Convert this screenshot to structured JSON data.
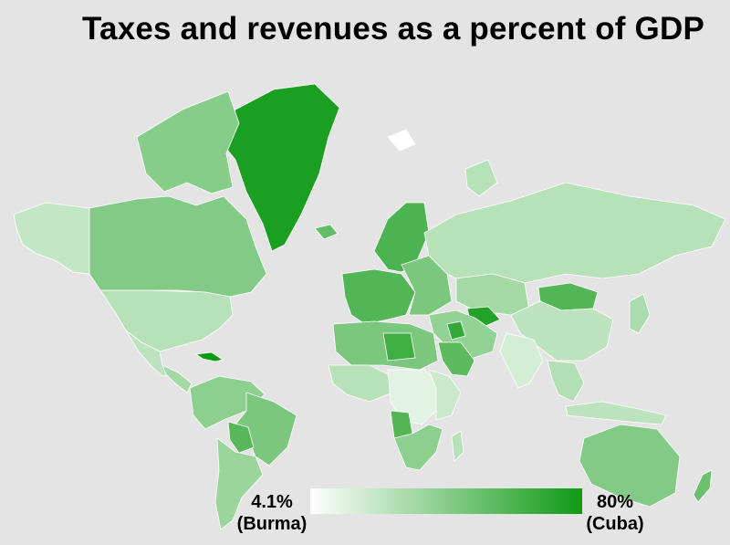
{
  "title": "Taxes and revenues as a percent of GDP",
  "legend": {
    "min_value": "4.1%",
    "min_country": "(Burma)",
    "max_value": "80%",
    "max_country": "(Cuba)",
    "color_low": "#ffffff",
    "color_high": "#0f9a14"
  },
  "colors": {
    "background": "#e4e4e4",
    "water_gap": "#ffffff"
  },
  "regions": [
    {
      "id": "greenland",
      "name": "Greenland",
      "level": 0.95
    },
    {
      "id": "alaska",
      "name": "Alaska",
      "level": 0.25
    },
    {
      "id": "canada",
      "name": "Canada",
      "level": 0.52
    },
    {
      "id": "canada-arctic",
      "name": "Canadian Arctic",
      "level": 0.5
    },
    {
      "id": "usa",
      "name": "United States",
      "level": 0.3
    },
    {
      "id": "mexico",
      "name": "Mexico",
      "level": 0.28
    },
    {
      "id": "central-america",
      "name": "Central America",
      "level": 0.38
    },
    {
      "id": "cuba",
      "name": "Cuba",
      "level": 1.0
    },
    {
      "id": "south-america-north",
      "name": "Northern South America",
      "level": 0.48
    },
    {
      "id": "brazil",
      "name": "Brazil",
      "level": 0.55
    },
    {
      "id": "bolivia",
      "name": "Bolivia",
      "level": 0.7
    },
    {
      "id": "south-america-south",
      "name": "Southern South America",
      "level": 0.42
    },
    {
      "id": "iceland",
      "name": "Iceland",
      "level": 0.65
    },
    {
      "id": "scandinavia",
      "name": "Scandinavia",
      "level": 0.75
    },
    {
      "id": "western-europe",
      "name": "Western Europe",
      "level": 0.72
    },
    {
      "id": "eastern-europe",
      "name": "Eastern Europe",
      "level": 0.55
    },
    {
      "id": "russia",
      "name": "Russia",
      "level": 0.3
    },
    {
      "id": "central-asia",
      "name": "Central Asia",
      "level": 0.38
    },
    {
      "id": "turkmenistan",
      "name": "Turkmenistan",
      "level": 0.92
    },
    {
      "id": "mongolia",
      "name": "Mongolia",
      "level": 0.72
    },
    {
      "id": "china",
      "name": "China",
      "level": 0.28
    },
    {
      "id": "india",
      "name": "India",
      "level": 0.18
    },
    {
      "id": "middle-east",
      "name": "Middle East",
      "level": 0.45
    },
    {
      "id": "saudi-arabia",
      "name": "Saudi Arabia",
      "level": 0.68
    },
    {
      "id": "iraq",
      "name": "Iraq",
      "level": 0.85
    },
    {
      "id": "north-africa",
      "name": "North Africa",
      "level": 0.55
    },
    {
      "id": "libya",
      "name": "Libya",
      "level": 0.8
    },
    {
      "id": "west-africa",
      "name": "West Africa",
      "level": 0.3
    },
    {
      "id": "central-africa",
      "name": "Central Africa",
      "level": 0.12
    },
    {
      "id": "east-africa",
      "name": "East Africa",
      "level": 0.22
    },
    {
      "id": "angola",
      "name": "Angola",
      "level": 0.72
    },
    {
      "id": "southern-africa",
      "name": "Southern Africa",
      "level": 0.48
    },
    {
      "id": "madagascar",
      "name": "Madagascar",
      "level": 0.3
    },
    {
      "id": "southeast-asia",
      "name": "Southeast Asia",
      "level": 0.32
    },
    {
      "id": "japan",
      "name": "Japan",
      "level": 0.35
    },
    {
      "id": "indonesia",
      "name": "Indonesia",
      "level": 0.28
    },
    {
      "id": "australia",
      "name": "Australia",
      "level": 0.52
    },
    {
      "id": "new-zealand",
      "name": "New Zealand",
      "level": 0.62
    },
    {
      "id": "svalbard",
      "name": "Svalbard",
      "level": 0.0
    },
    {
      "id": "arctic-russia-islands",
      "name": "Arctic islands",
      "level": 0.3
    }
  ]
}
